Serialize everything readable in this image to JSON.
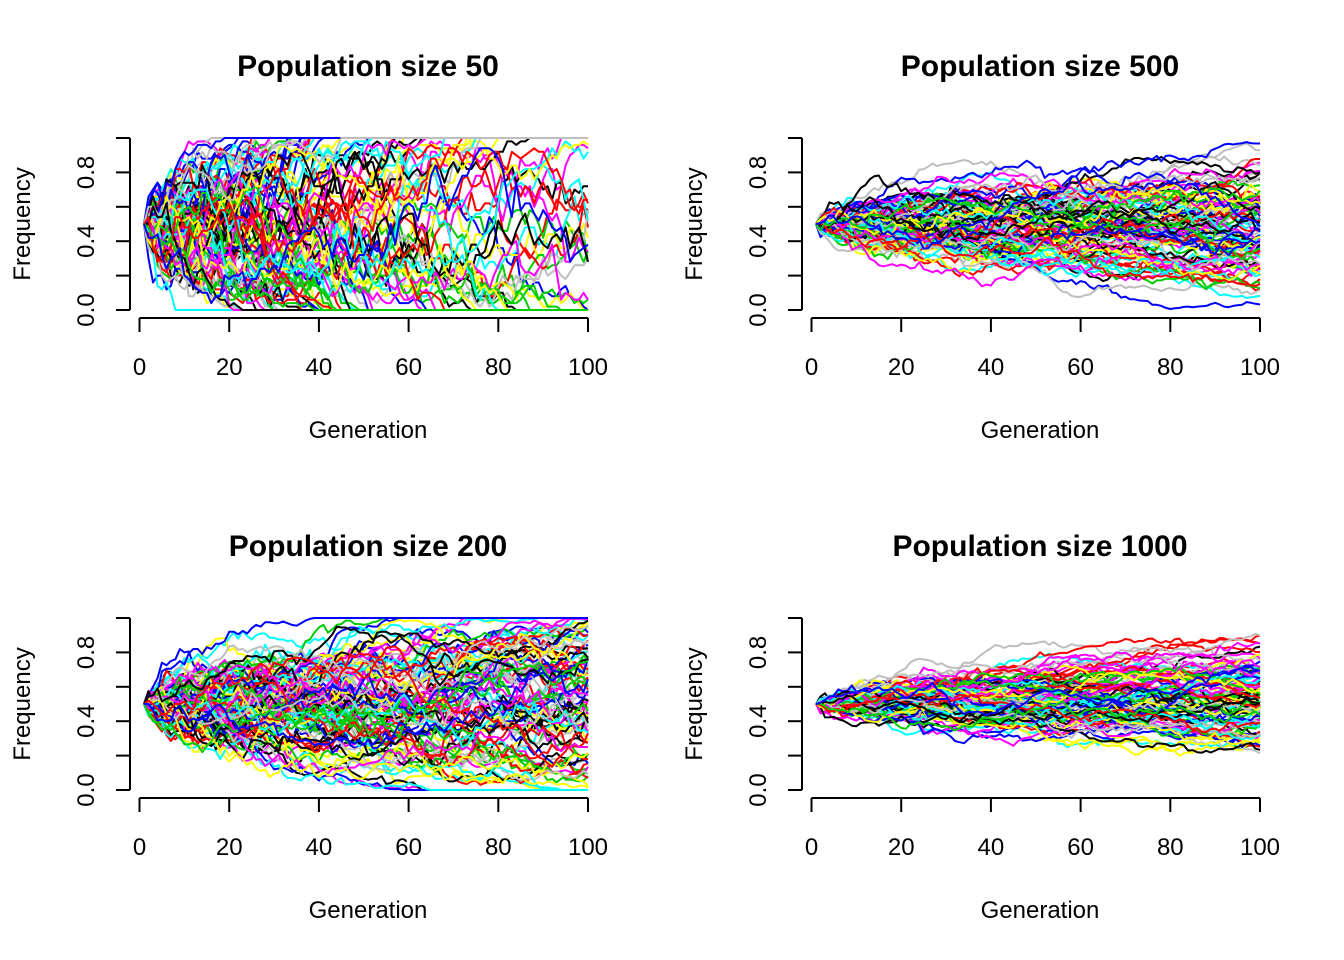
{
  "chart_data": [
    {
      "type": "line",
      "title": "Population size 50",
      "xlabel": "Generation",
      "ylabel": "Frequency",
      "xlim": [
        1,
        100
      ],
      "ylim": [
        0,
        1
      ],
      "x_ticks": [
        "0",
        "20",
        "40",
        "60",
        "80",
        "100"
      ],
      "y_ticks": [
        "0.0",
        "0.4",
        "0.8"
      ],
      "grid": false,
      "generations": 100,
      "initial_frequency": 0.5,
      "population_size": 50,
      "replicates": 100,
      "palette": [
        "#000000",
        "#FF0000",
        "#00CD00",
        "#0000FF",
        "#00FFFF",
        "#FF00FF",
        "#FFFF00",
        "#BEBEBE"
      ]
    },
    {
      "type": "line",
      "title": "Population size 500",
      "xlabel": "Generation",
      "ylabel": "Frequency",
      "xlim": [
        1,
        100
      ],
      "ylim": [
        0,
        1
      ],
      "x_ticks": [
        "0",
        "20",
        "40",
        "60",
        "80",
        "100"
      ],
      "y_ticks": [
        "0.0",
        "0.4",
        "0.8"
      ],
      "grid": false,
      "generations": 100,
      "initial_frequency": 0.5,
      "population_size": 500,
      "replicates": 100,
      "palette": [
        "#000000",
        "#FF0000",
        "#00CD00",
        "#0000FF",
        "#00FFFF",
        "#FF00FF",
        "#FFFF00",
        "#BEBEBE"
      ]
    },
    {
      "type": "line",
      "title": "Population size 200",
      "xlabel": "Generation",
      "ylabel": "Frequency",
      "xlim": [
        1,
        100
      ],
      "ylim": [
        0,
        1
      ],
      "x_ticks": [
        "0",
        "20",
        "40",
        "60",
        "80",
        "100"
      ],
      "y_ticks": [
        "0.0",
        "0.4",
        "0.8"
      ],
      "grid": false,
      "generations": 100,
      "initial_frequency": 0.5,
      "population_size": 200,
      "replicates": 100,
      "palette": [
        "#000000",
        "#FF0000",
        "#00CD00",
        "#0000FF",
        "#00FFFF",
        "#FF00FF",
        "#FFFF00",
        "#BEBEBE"
      ]
    },
    {
      "type": "line",
      "title": "Population size 1000",
      "xlabel": "Generation",
      "ylabel": "Frequency",
      "xlim": [
        1,
        100
      ],
      "ylim": [
        0,
        1
      ],
      "x_ticks": [
        "0",
        "20",
        "40",
        "60",
        "80",
        "100"
      ],
      "y_ticks": [
        "0.0",
        "0.4",
        "0.8"
      ],
      "grid": false,
      "generations": 100,
      "initial_frequency": 0.5,
      "population_size": 1000,
      "replicates": 100,
      "palette": [
        "#000000",
        "#FF0000",
        "#00CD00",
        "#0000FF",
        "#00FFFF",
        "#FF00FF",
        "#FFFF00",
        "#BEBEBE"
      ]
    }
  ]
}
